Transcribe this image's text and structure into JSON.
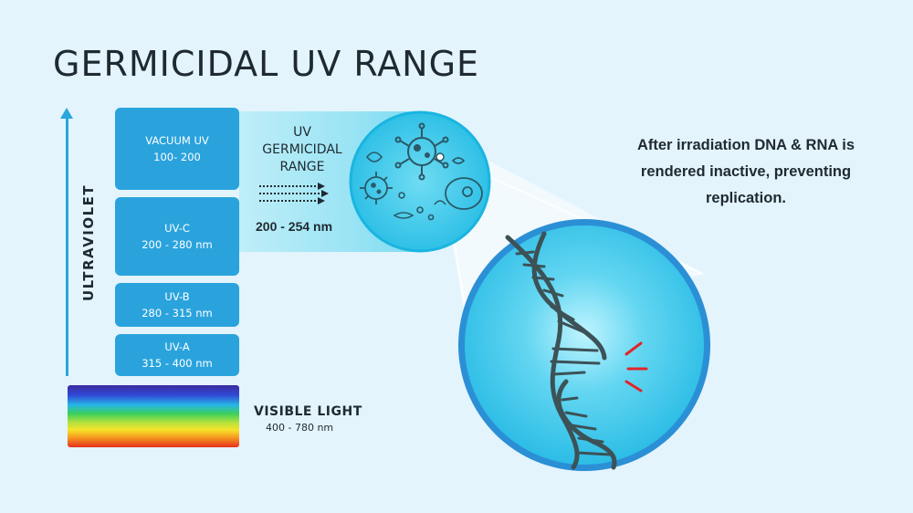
{
  "title": "GERMICIDAL UV RANGE",
  "axis_label": "ULTRAVIOLET",
  "bands": [
    {
      "name": "VACUUM UV",
      "range": "100- 200"
    },
    {
      "name": "UV-C",
      "range": "200 - 280 nm"
    },
    {
      "name": "UV-B",
      "range": "280 - 315 nm"
    },
    {
      "name": "UV-A",
      "range": "315 - 400 nm"
    }
  ],
  "visible_light": {
    "name": "VISIBLE LIGHT",
    "range": "400 - 780 nm"
  },
  "germicidal": {
    "line1": "UV",
    "line2": "GERMICIDAL",
    "line3": "RANGE",
    "range": "200 - 254 nm"
  },
  "note": "After irradiation DNA & RNA is rendered inactive, preventing replication.",
  "colors": {
    "band_fill": "#2aa3dd",
    "axis": "#28a7dd",
    "beam": "#9be4f5",
    "dish": "#39c8e8",
    "zoom_circle": "#3fc9ec",
    "zoom_border": "#2b8fd6",
    "dna": "#3c5257",
    "damage_marks": "#e0262b",
    "background": "#e3f4fc"
  }
}
